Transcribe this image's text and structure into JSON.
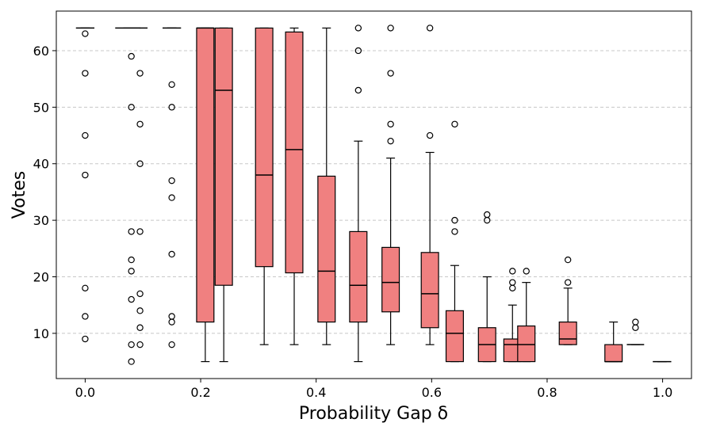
{
  "chart_data": {
    "type": "boxplot",
    "title": "",
    "xlabel": "Probability Gap δ",
    "ylabel": "Votes",
    "xlim": [
      -0.05,
      1.05
    ],
    "ylim": [
      2,
      67
    ],
    "xticks": [
      0.0,
      0.2,
      0.4,
      0.6,
      0.8,
      1.0
    ],
    "xtick_labels": [
      "0.0",
      "0.2",
      "0.4",
      "0.6",
      "0.8",
      "1.0"
    ],
    "yticks": [
      10,
      20,
      30,
      40,
      50,
      60
    ],
    "ytick_labels": [
      "10",
      "20",
      "30",
      "40",
      "50",
      "60"
    ],
    "grid": "y-dashed",
    "box_color": "#f08080",
    "edge_color": "#000000",
    "boxes": [
      {
        "x": 0.0,
        "width": 0.032,
        "whislo": 64,
        "q1": 64,
        "med": 64,
        "q3": 64,
        "whishi": 64,
        "fliers": [
          63,
          56,
          45,
          38,
          18,
          13,
          9
        ]
      },
      {
        "x": 0.08,
        "width": 0.056,
        "whislo": 64,
        "q1": 64,
        "med": 64,
        "q3": 64,
        "whishi": 64,
        "fliers": [
          59,
          50,
          28,
          23,
          21,
          16,
          8,
          5
        ]
      },
      {
        "x": 0.095,
        "width": 0.001,
        "whislo": 64,
        "q1": 64,
        "med": 64,
        "q3": 64,
        "whishi": 64,
        "fliers": [
          56,
          47,
          40,
          28,
          17,
          14,
          11,
          8
        ]
      },
      {
        "x": 0.15,
        "width": 0.032,
        "whislo": 64,
        "q1": 64,
        "med": 64,
        "q3": 64,
        "whishi": 64,
        "fliers": [
          54,
          50,
          37,
          34,
          24,
          13,
          12,
          8
        ]
      },
      {
        "x": 0.208,
        "width": 0.03,
        "whislo": 5,
        "q1": 12,
        "med": 64,
        "q3": 64,
        "whishi": 64,
        "fliers": []
      },
      {
        "x": 0.24,
        "width": 0.03,
        "whislo": 5,
        "q1": 18.5,
        "med": 53,
        "q3": 64,
        "whishi": 64,
        "fliers": []
      },
      {
        "x": 0.31,
        "width": 0.03,
        "whislo": 8,
        "q1": 21.8,
        "med": 38,
        "q3": 64,
        "whishi": 64,
        "fliers": []
      },
      {
        "x": 0.362,
        "width": 0.03,
        "whislo": 8,
        "q1": 20.7,
        "med": 42.5,
        "q3": 63.3,
        "whishi": 64,
        "fliers": []
      },
      {
        "x": 0.418,
        "width": 0.03,
        "whislo": 8,
        "q1": 12,
        "med": 21,
        "q3": 37.8,
        "whishi": 64,
        "fliers": []
      },
      {
        "x": 0.473,
        "width": 0.03,
        "whislo": 5,
        "q1": 12,
        "med": 18.5,
        "q3": 28,
        "whishi": 44,
        "fliers": [
          64,
          60,
          53
        ]
      },
      {
        "x": 0.529,
        "width": 0.03,
        "whislo": 8,
        "q1": 13.8,
        "med": 19,
        "q3": 25.2,
        "whishi": 41,
        "fliers": [
          64,
          56,
          47,
          44
        ]
      },
      {
        "x": 0.597,
        "width": 0.03,
        "whislo": 8,
        "q1": 11,
        "med": 17,
        "q3": 24.3,
        "whishi": 42,
        "fliers": [
          64,
          45
        ]
      },
      {
        "x": 0.64,
        "width": 0.03,
        "whislo": 5,
        "q1": 5,
        "med": 10,
        "q3": 14,
        "whishi": 22,
        "fliers": [
          47,
          30,
          28
        ]
      },
      {
        "x": 0.696,
        "width": 0.03,
        "whislo": 5,
        "q1": 5,
        "med": 8,
        "q3": 11,
        "whishi": 20,
        "fliers": [
          31,
          30
        ]
      },
      {
        "x": 0.74,
        "width": 0.03,
        "whislo": 5,
        "q1": 5,
        "med": 8,
        "q3": 9,
        "whishi": 15,
        "fliers": [
          21,
          19,
          18
        ]
      },
      {
        "x": 0.764,
        "width": 0.03,
        "whislo": 5,
        "q1": 5,
        "med": 8,
        "q3": 11.3,
        "whishi": 19,
        "fliers": [
          21
        ]
      },
      {
        "x": 0.836,
        "width": 0.03,
        "whislo": 8,
        "q1": 8,
        "med": 9,
        "q3": 12,
        "whishi": 18,
        "fliers": [
          23,
          19
        ]
      },
      {
        "x": 0.915,
        "width": 0.03,
        "whislo": 5,
        "q1": 5,
        "med": 5,
        "q3": 8,
        "whishi": 12,
        "fliers": []
      },
      {
        "x": 0.953,
        "width": 0.03,
        "whislo": 8,
        "q1": 8,
        "med": 8,
        "q3": 8,
        "whishi": 8,
        "fliers": [
          12,
          11
        ]
      },
      {
        "x": 0.999,
        "width": 0.032,
        "whislo": 5,
        "q1": 5,
        "med": 5,
        "q3": 5,
        "whishi": 5,
        "fliers": []
      }
    ]
  }
}
